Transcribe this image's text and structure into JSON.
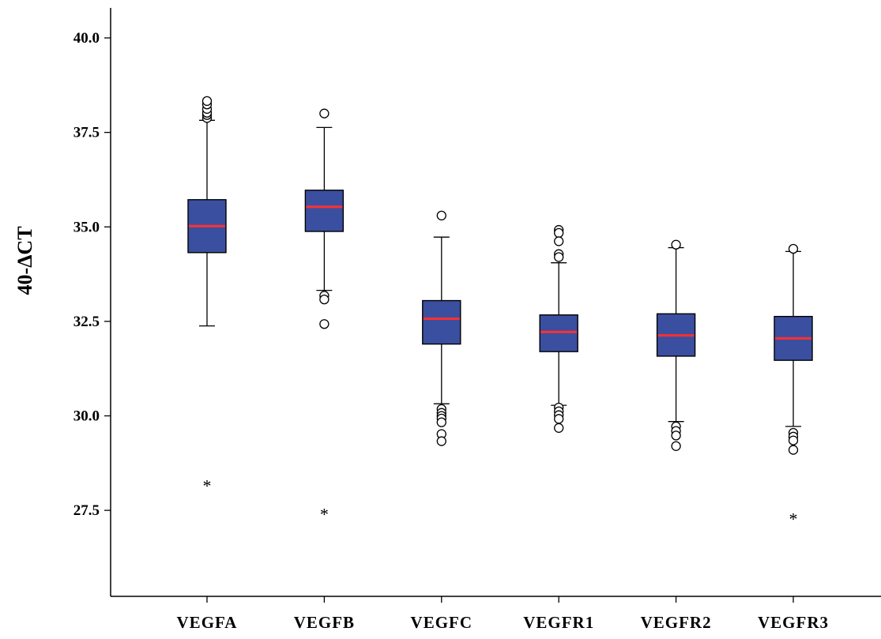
{
  "chart_data": {
    "type": "box",
    "ylabel": "40-ΔCT",
    "xlabel": "",
    "ylim": [
      25.0,
      40.8
    ],
    "yticks": [
      27.5,
      30.0,
      32.5,
      35.0,
      37.5,
      40.0
    ],
    "ytick_labels": [
      "27.5",
      "30.0",
      "32.5",
      "35.0",
      "37.5",
      "40.0"
    ],
    "categories": [
      "VEGFA",
      "VEGFB",
      "VEGFC",
      "VEGFR1",
      "VEGFR2",
      "VEGFR3"
    ],
    "boxes": [
      {
        "category": "VEGFA",
        "q1": 34.32,
        "median": 35.02,
        "q3": 35.72,
        "whisker_low": 32.38,
        "whisker_high": 37.82,
        "outliers": [
          37.88,
          37.96,
          38.02,
          38.12,
          38.24,
          38.33
        ],
        "extremes": [
          28.2
        ]
      },
      {
        "category": "VEGFB",
        "q1": 34.88,
        "median": 35.53,
        "q3": 35.97,
        "whisker_low": 33.32,
        "whisker_high": 37.63,
        "outliers": [
          38.0,
          33.18,
          33.08,
          32.43
        ],
        "extremes": [
          27.45
        ]
      },
      {
        "category": "VEGFC",
        "q1": 31.9,
        "median": 32.57,
        "q3": 33.05,
        "whisker_low": 30.32,
        "whisker_high": 34.73,
        "outliers": [
          35.3,
          30.18,
          30.08,
          30.0,
          29.93,
          29.83,
          29.52,
          29.33
        ],
        "extremes": []
      },
      {
        "category": "VEGFR1",
        "q1": 31.7,
        "median": 32.22,
        "q3": 32.67,
        "whisker_low": 30.28,
        "whisker_high": 34.05,
        "outliers": [
          34.92,
          34.84,
          34.62,
          34.28,
          34.2,
          30.22,
          30.12,
          30.02,
          29.92,
          29.68
        ],
        "extremes": []
      },
      {
        "category": "VEGFR2",
        "q1": 31.58,
        "median": 32.13,
        "q3": 32.7,
        "whisker_low": 29.85,
        "whisker_high": 34.45,
        "outliers": [
          34.53,
          29.72,
          29.6,
          29.48,
          29.2
        ],
        "extremes": []
      },
      {
        "category": "VEGFR3",
        "q1": 31.47,
        "median": 32.05,
        "q3": 32.63,
        "whisker_low": 29.72,
        "whisker_high": 34.35,
        "outliers": [
          34.42,
          29.55,
          29.45,
          29.35,
          29.1
        ],
        "extremes": [
          27.33
        ]
      }
    ],
    "colors": {
      "box_fill": "#3b4fa0",
      "median": "#ff3030",
      "stroke": "#000000"
    },
    "grid": false,
    "legend": "none"
  }
}
